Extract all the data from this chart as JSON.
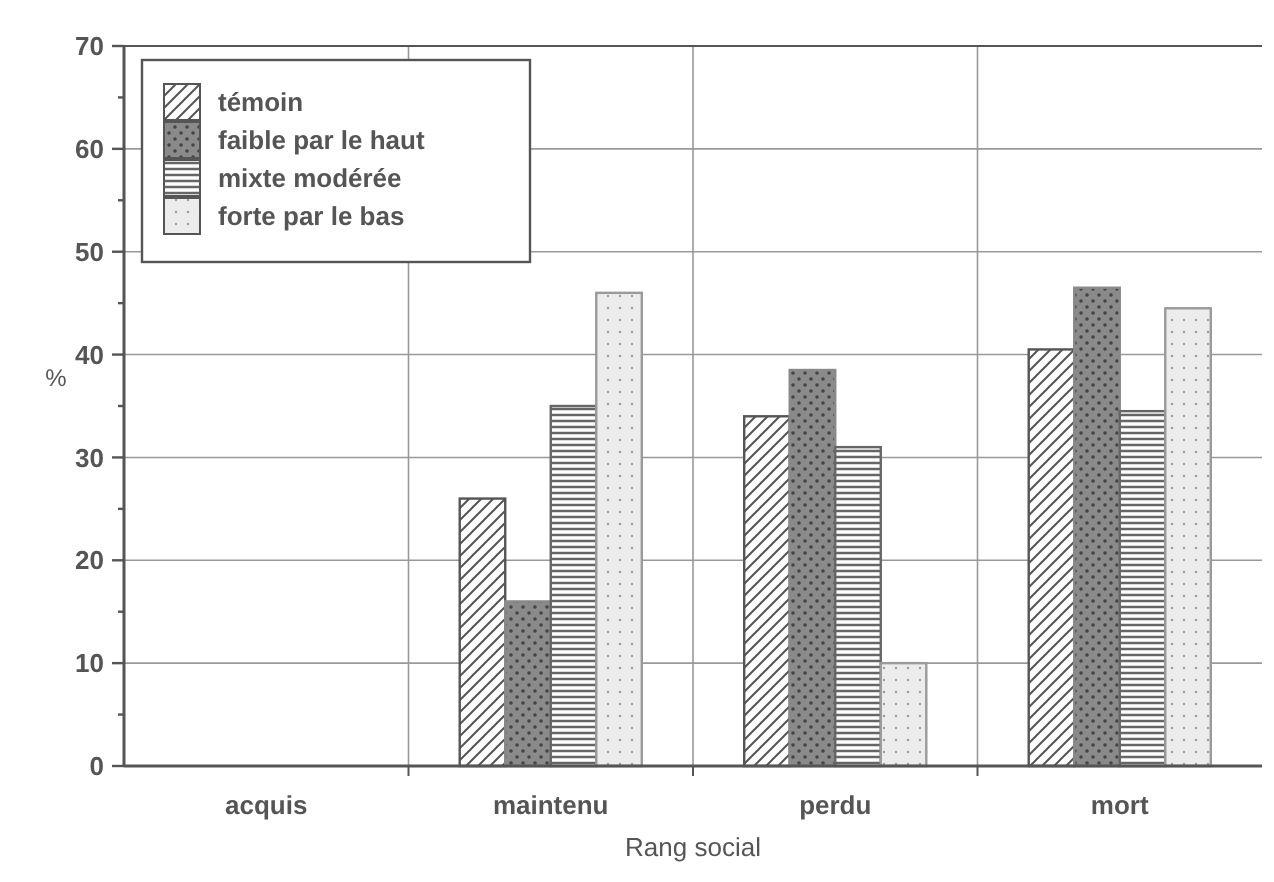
{
  "chart_data": {
    "type": "bar",
    "xlabel": "Rang social",
    "ylabel": "%",
    "categories": [
      "acquis",
      "maintenu",
      "perdu",
      "mort"
    ],
    "series": [
      {
        "name": "témoin",
        "color": "#555555",
        "values": [
          0,
          26,
          34,
          40.5
        ]
      },
      {
        "name": "faible par le haut",
        "color": "#8a8a8a",
        "values": [
          0,
          16,
          38.5,
          46.5
        ]
      },
      {
        "name": "mixte modérée",
        "color": "#666666",
        "values": [
          0,
          35,
          31,
          34.5
        ]
      },
      {
        "name": "forte par le bas",
        "color": "#9a9a9a",
        "values": [
          0,
          46,
          10,
          44.5
        ]
      }
    ],
    "ylim": [
      0,
      70
    ],
    "yticks": [
      0,
      {
        "value": 5,
        "label": null
      },
      10,
      {
        "value": 15,
        "label": null
      },
      20,
      {
        "value": 25,
        "label": null
      },
      30,
      {
        "value": 35,
        "label": null
      },
      40,
      {
        "value": 45,
        "label": null
      },
      50,
      {
        "value": 55,
        "label": null
      },
      60,
      {
        "value": 65,
        "label": null
      },
      70
    ],
    "grid": true,
    "legend": "top left"
  }
}
